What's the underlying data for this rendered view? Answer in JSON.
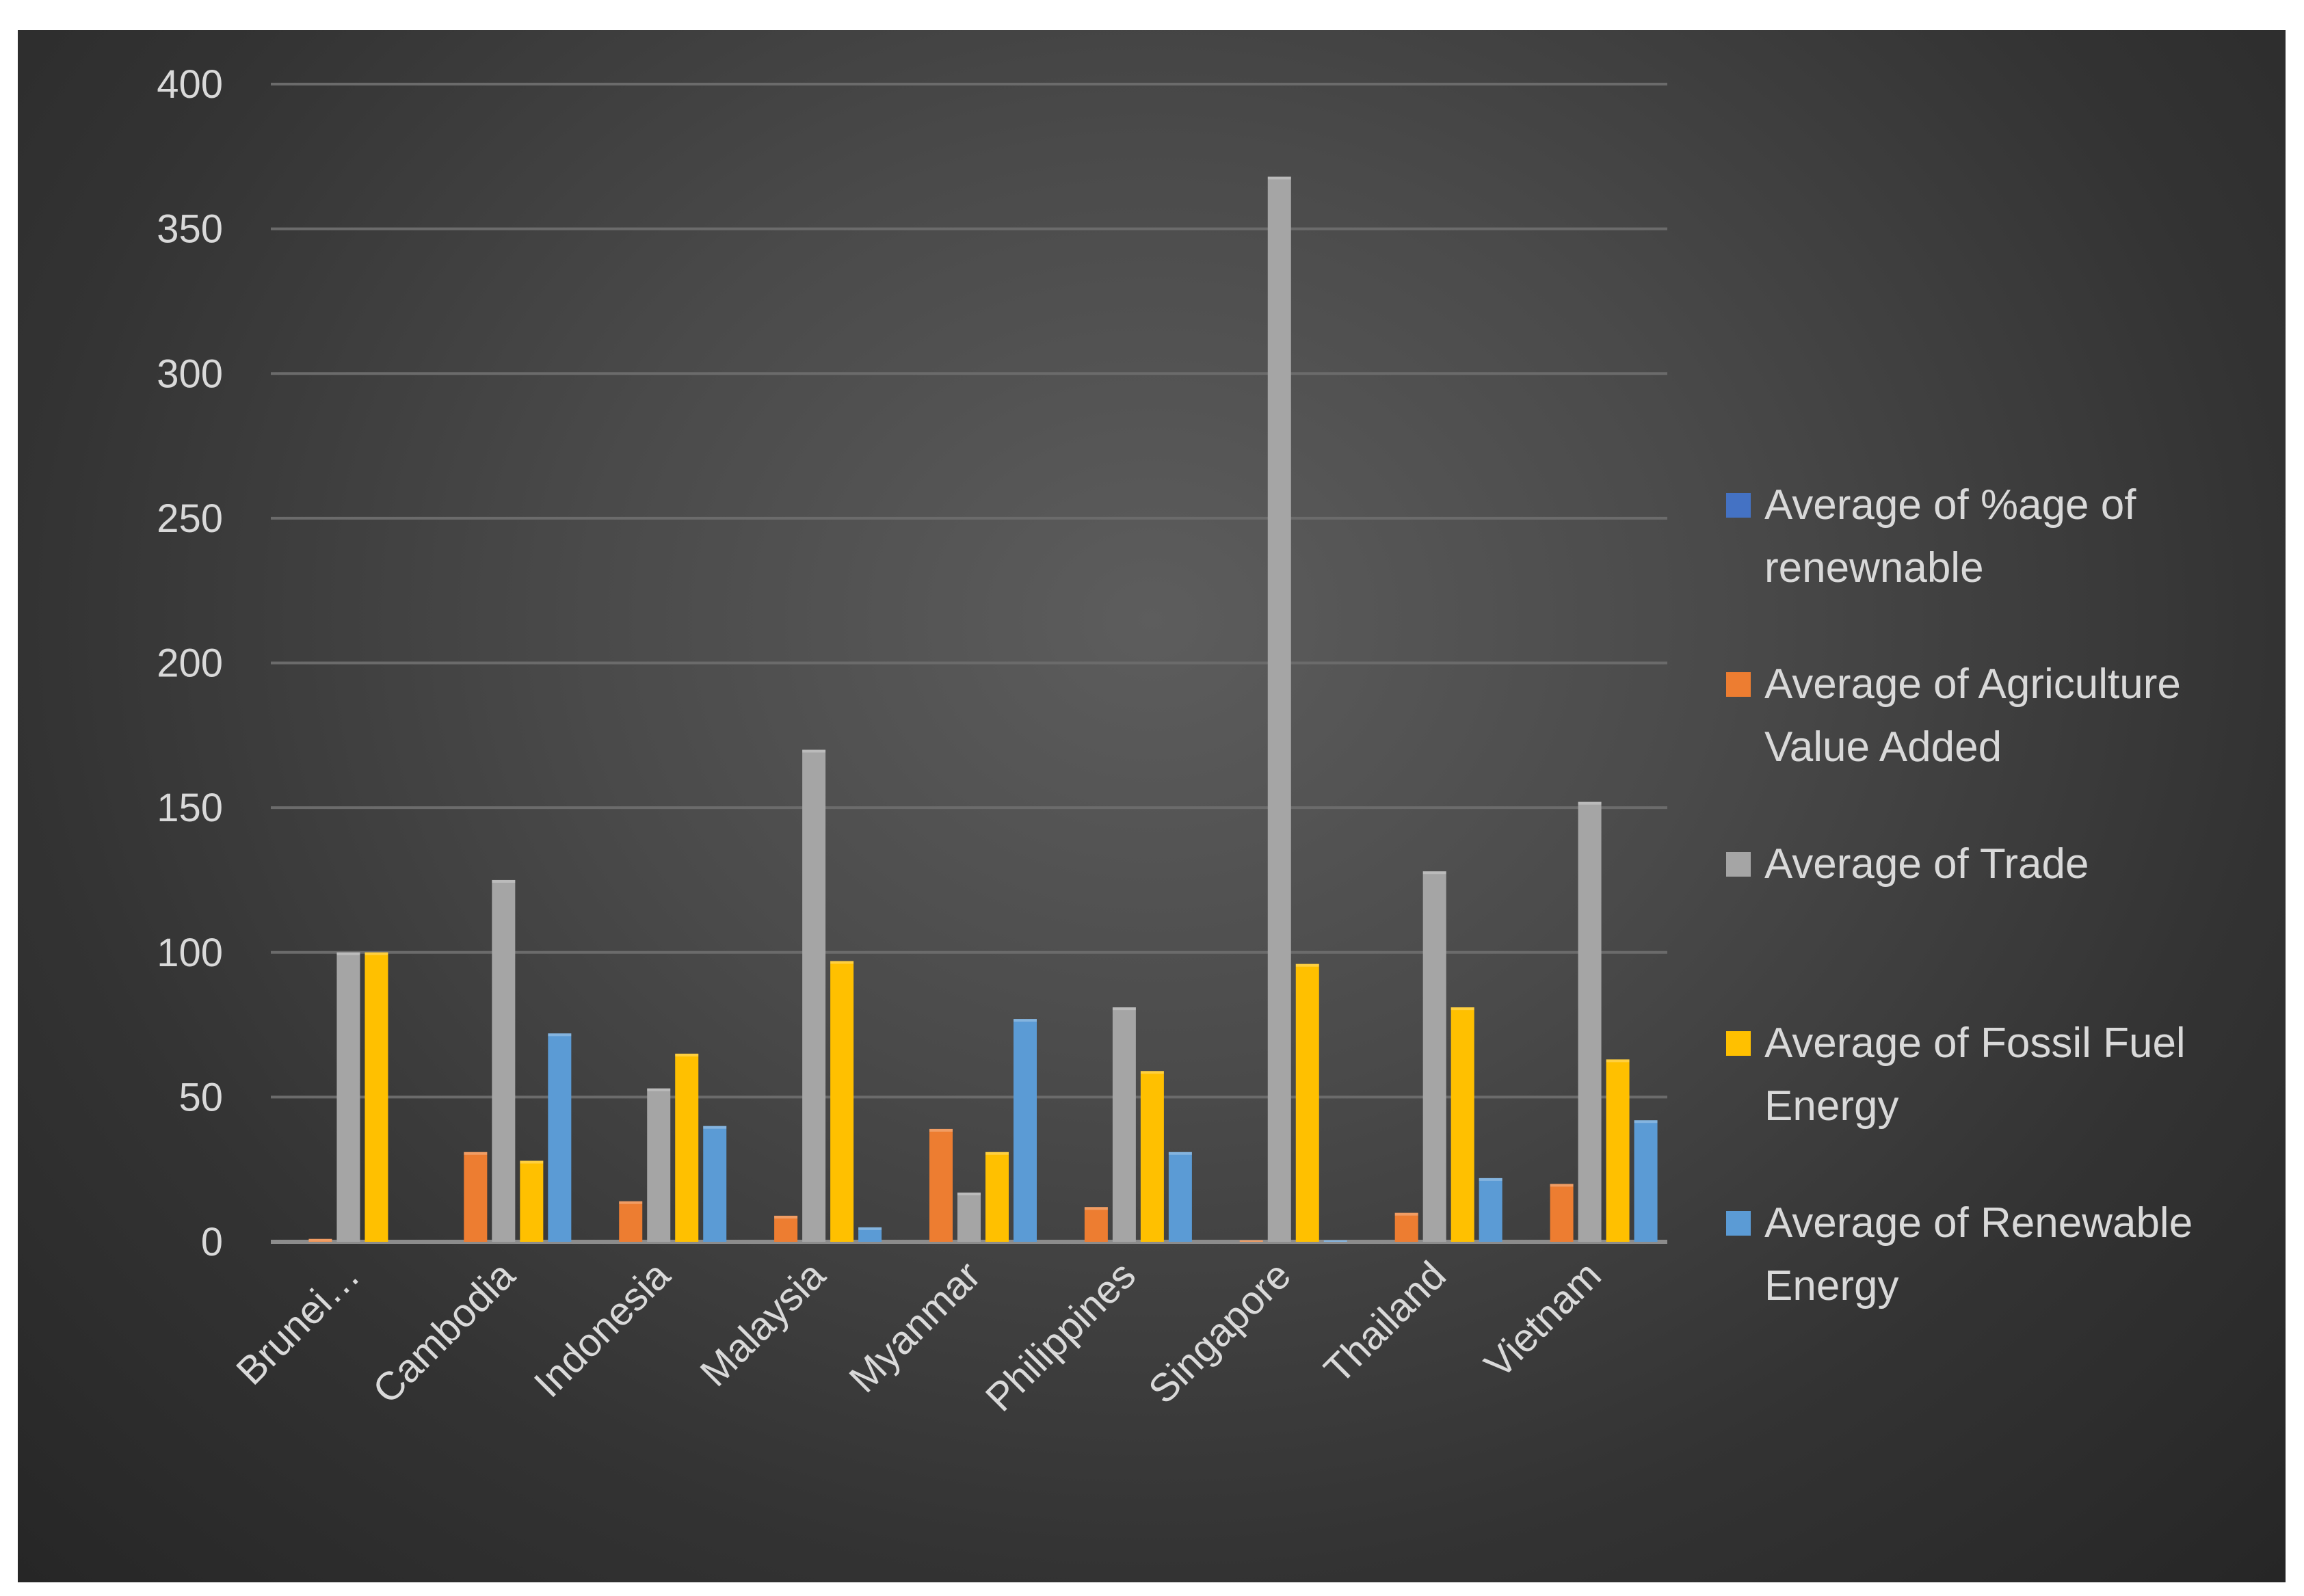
{
  "chart_data": {
    "type": "bar",
    "title": "",
    "xlabel": "",
    "ylabel": "",
    "ylim": [
      0,
      400
    ],
    "yticks": [
      0,
      50,
      100,
      150,
      200,
      250,
      300,
      350,
      400
    ],
    "grid": true,
    "legend_position": "right",
    "categories": [
      "Brunei…",
      "Cambodia",
      "Indonesia",
      "Malaysia",
      "Myanmar",
      "Philippines",
      "Singapore",
      "Thailand",
      "Vietnam"
    ],
    "series": [
      {
        "name": "Average of %age of renewnable",
        "color": "#4472c4",
        "legend_lines": [
          "Average of %age of",
          "renewnable"
        ],
        "values": [
          0,
          0,
          0,
          0,
          0,
          0,
          0,
          0,
          0
        ]
      },
      {
        "name": "Average of Agriculture Value Added",
        "color": "#ed7d31",
        "legend_lines": [
          "Average of Agriculture",
          "Value Added"
        ],
        "values": [
          1,
          31,
          14,
          9,
          39,
          12,
          0.5,
          10,
          20
        ]
      },
      {
        "name": "Average of Trade",
        "color": "#a5a5a5",
        "legend_lines": [
          "Average of Trade"
        ],
        "values": [
          100,
          125,
          53,
          170,
          17,
          81,
          368,
          128,
          152
        ]
      },
      {
        "name": "Average of Fossil Fuel Energy",
        "color": "#ffc000",
        "legend_lines": [
          "Average of Fossil Fuel",
          "Energy"
        ],
        "values": [
          100,
          28,
          65,
          97,
          31,
          59,
          96,
          81,
          63
        ]
      },
      {
        "name": "Average of Renewable Energy",
        "color": "#5b9bd5",
        "legend_lines": [
          "Average of Renewable",
          "Energy"
        ],
        "values": [
          0,
          72,
          40,
          5,
          77,
          31,
          0.5,
          22,
          42
        ]
      }
    ]
  }
}
